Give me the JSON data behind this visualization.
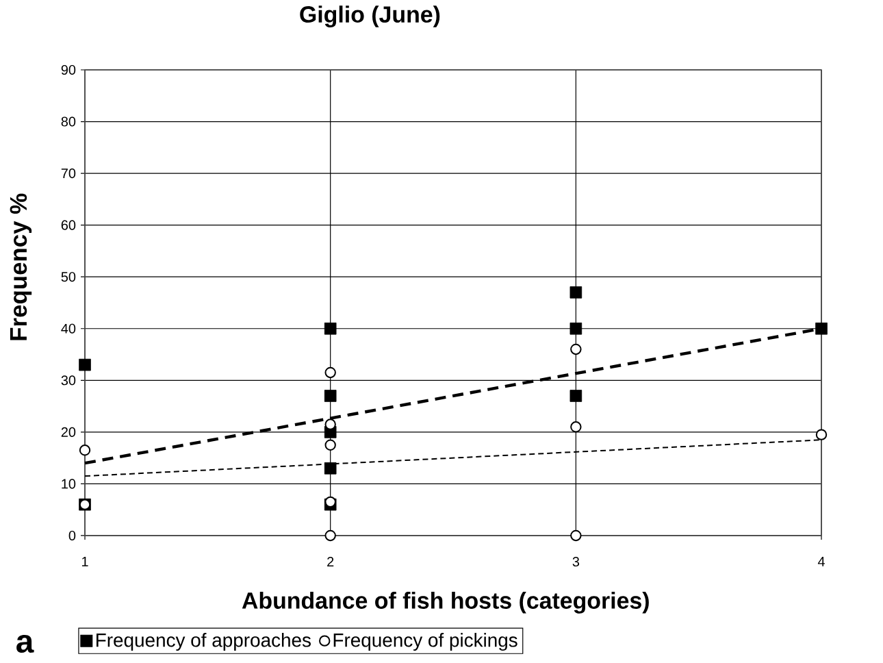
{
  "chart_data": {
    "type": "scatter",
    "title": "Giglio (June)",
    "xlabel": "Abundance of fish hosts (categories)",
    "ylabel": "Frequency %",
    "series": [
      {
        "name": "Frequency of approaches",
        "color": "#000000",
        "marker": "square",
        "x": [
          1,
          1,
          2,
          2,
          2,
          2,
          2,
          3,
          3,
          3,
          4
        ],
        "values": [
          33,
          6,
          40,
          27,
          20,
          13,
          6,
          47,
          40,
          27,
          40
        ]
      },
      {
        "name": "Frequency of pickings",
        "color": "#000000",
        "marker": "circle",
        "x": [
          1,
          1,
          2,
          2,
          2,
          2,
          2,
          3,
          3,
          3,
          4
        ],
        "values": [
          16.5,
          6,
          31.5,
          21.5,
          17.5,
          6.5,
          0,
          36,
          21,
          0,
          19.5
        ]
      },
      {
        "type": "line",
        "color": "#000000",
        "line_style": "dashed",
        "marker": "none",
        "x": [
          1,
          4
        ],
        "values": [
          14,
          40
        ]
      },
      {
        "type": "line",
        "color": "#000000",
        "line_style": "dashed",
        "marker": "none",
        "x": [
          1,
          4
        ],
        "values": [
          11.5,
          18.5
        ]
      }
    ],
    "xlim": [
      1,
      4
    ],
    "xticks": [
      1,
      2,
      3,
      4
    ],
    "ylim": [
      0,
      90
    ],
    "yticks": [
      0,
      10,
      20,
      30,
      40,
      50,
      60,
      70,
      80,
      90
    ],
    "grid": true,
    "legend": "bottom",
    "annotations": [
      "a"
    ]
  }
}
